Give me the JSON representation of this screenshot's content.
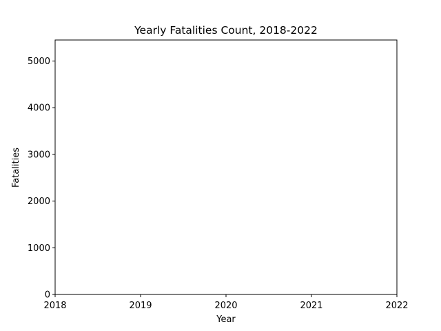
{
  "chart_data": {
    "type": "area",
    "title": "Yearly Fatalities Count, 2018-2022",
    "xlabel": "Year",
    "ylabel": "Fatalities",
    "x_ticks": [
      2018,
      2019,
      2020,
      2021,
      2022
    ],
    "y_ticks": [
      0,
      1000,
      2000,
      3000,
      4000,
      5000
    ],
    "xlim": [
      2018,
      2022
    ],
    "ylim": [
      0,
      5450
    ],
    "grid": false,
    "legend": "none",
    "series": []
  }
}
